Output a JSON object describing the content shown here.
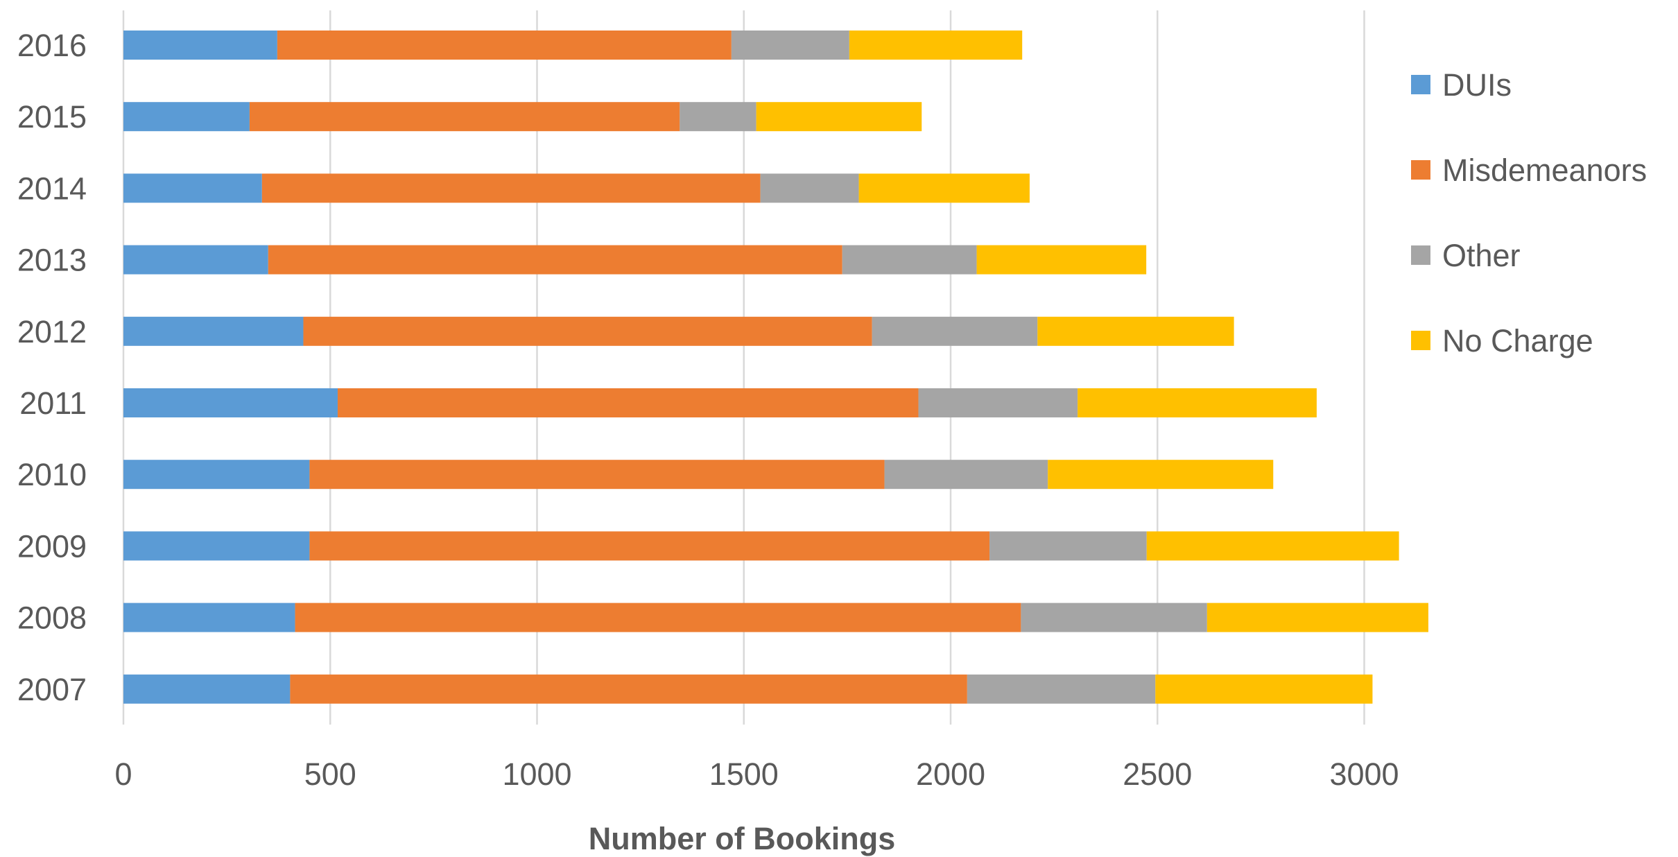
{
  "chart_data": {
    "type": "bar",
    "orientation": "horizontal",
    "stacked": true,
    "title": "",
    "xlabel": "Number of Bookings",
    "ylabel": "",
    "xlim": [
      0,
      3300
    ],
    "x_ticks": [
      0,
      500,
      1000,
      1500,
      2000,
      2500,
      3000
    ],
    "grid": true,
    "legend_position": "right",
    "categories": [
      "2016",
      "2015",
      "2014",
      "2013",
      "2012",
      "2011",
      "2010",
      "2009",
      "2008",
      "2007"
    ],
    "series": [
      {
        "name": "DUIs",
        "color": "#5b9bd5",
        "values": [
          372,
          305,
          335,
          350,
          435,
          518,
          450,
          450,
          415,
          403
        ]
      },
      {
        "name": "Misdemeanors",
        "color": "#ed7d31",
        "values": [
          1098,
          1040,
          1205,
          1388,
          1375,
          1404,
          1390,
          1644,
          1755,
          1637
        ]
      },
      {
        "name": "Other",
        "color": "#a5a5a5",
        "values": [
          285,
          185,
          238,
          325,
          400,
          385,
          395,
          380,
          450,
          455
        ]
      },
      {
        "name": "No Charge",
        "color": "#ffc000",
        "values": [
          418,
          400,
          413,
          410,
          475,
          578,
          545,
          610,
          535,
          525
        ]
      }
    ]
  }
}
